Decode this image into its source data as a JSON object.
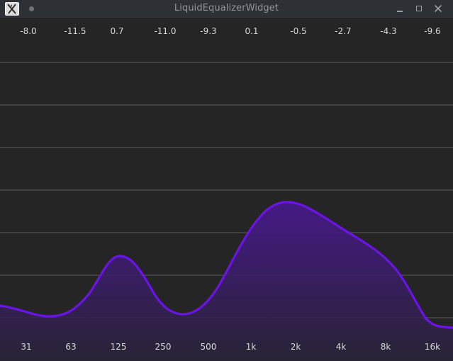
{
  "window": {
    "title": "LiquidEqualizerWidget",
    "app_icon": "x-app-icon",
    "controls": [
      "minimize-icon",
      "maximize-icon",
      "close-icon"
    ]
  },
  "equalizer": {
    "gains": [
      "-8.0",
      "-11.5",
      "0.7",
      "-11.0",
      "-9.3",
      "0.1",
      "-0.5",
      "-2.7",
      "-4.3",
      "-9.6"
    ],
    "bands": [
      "31",
      "63",
      "125",
      "250",
      "500",
      "1k",
      "2k",
      "4k",
      "8k",
      "16k"
    ],
    "colors": {
      "background": "#252525",
      "grid": "#4a4a4a",
      "curve": "#6a14e6",
      "fill_top": "#4a1796",
      "fill_bottom": "#2a2338"
    }
  }
}
